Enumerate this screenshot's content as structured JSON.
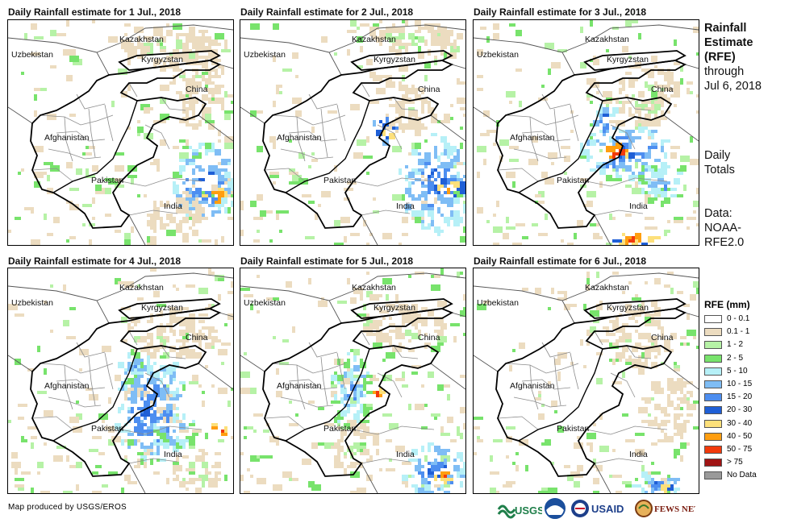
{
  "panels": [
    {
      "title": "Daily Rainfall estimate for 1 Jul., 2018",
      "intensity": 1
    },
    {
      "title": "Daily Rainfall estimate for 2 Jul., 2018",
      "intensity": 2
    },
    {
      "title": "Daily Rainfall estimate for 3 Jul., 2018",
      "intensity": 3
    },
    {
      "title": "Daily Rainfall estimate for 4 Jul., 2018",
      "intensity": 2
    },
    {
      "title": "Daily Rainfall estimate for 5 Jul., 2018",
      "intensity": 2
    },
    {
      "title": "Daily Rainfall estimate for 6 Jul., 2018",
      "intensity": 1
    }
  ],
  "map_labels": {
    "kazakhstan": "Kazakhstan",
    "uzbekistan": "Uzbekistan",
    "kyrgyzstan": "Kyrgyzstan",
    "china": "China",
    "afghanistan": "Afghanistan",
    "pakistan": "Pakistan",
    "india": "India"
  },
  "side": {
    "title_line1": "Rainfall",
    "title_line2": "Estimate",
    "title_line3": "(RFE)",
    "through": "through",
    "date": "Jul 6, 2018",
    "daily": "Daily",
    "totals": "Totals",
    "data_label": "Data:",
    "data_source1": "NOAA-",
    "data_source2": "RFE2.0"
  },
  "legend": {
    "title": "RFE (mm)",
    "items": [
      {
        "label": "0 - 0.1",
        "color": "#ffffff"
      },
      {
        "label": "0.1 - 1",
        "color": "#ecdcc0"
      },
      {
        "label": "1 - 2",
        "color": "#b6f2a6"
      },
      {
        "label": "2 - 5",
        "color": "#78e36c"
      },
      {
        "label": "5 - 10",
        "color": "#b6f0f7"
      },
      {
        "label": "10 - 15",
        "color": "#7fbdf5"
      },
      {
        "label": "15 - 20",
        "color": "#4d8ef0"
      },
      {
        "label": "20 - 30",
        "color": "#1f5fd6"
      },
      {
        "label": "30 - 40",
        "color": "#fde07a"
      },
      {
        "label": "40 - 50",
        "color": "#ff9e10"
      },
      {
        "label": "50 - 75",
        "color": "#f23a0c"
      },
      {
        "label": "> 75",
        "color": "#a01414"
      },
      {
        "label": "No Data",
        "color": "#9a9a9a"
      }
    ]
  },
  "credit": "Map produced by USGS/EROS",
  "logos": {
    "usgs": "USGS",
    "usaid": "USAID",
    "fewsnet": "FEWS NET"
  }
}
